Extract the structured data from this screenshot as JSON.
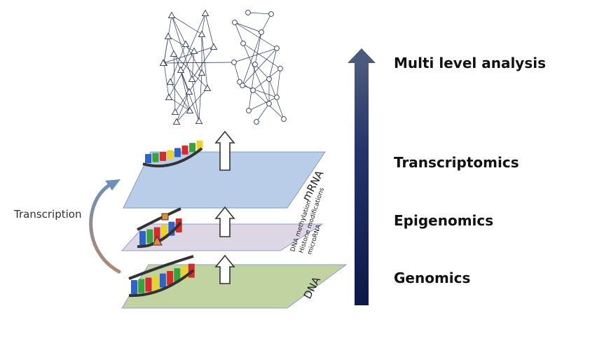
{
  "levels": {
    "multi": "Multi level analysis",
    "transcriptomics": "Transcriptomics",
    "epigenomics": "Epigenomics",
    "genomics": "Genomics"
  },
  "planes": {
    "mrna": "mRNA",
    "dna": "DNA",
    "epi_lines": [
      "DNA methylation",
      "Histone modifications",
      "microRNA"
    ]
  },
  "transcription": "Transcription",
  "colors": {
    "mrna_plane": "#b9cde8",
    "epi_plane": "#ddd6e4",
    "dna_plane": "#c2d3a2",
    "arrow_gradient_top": "#4a5a7a",
    "arrow_gradient_bottom": "#0c1a4a",
    "network_stroke": "#2a3560"
  }
}
